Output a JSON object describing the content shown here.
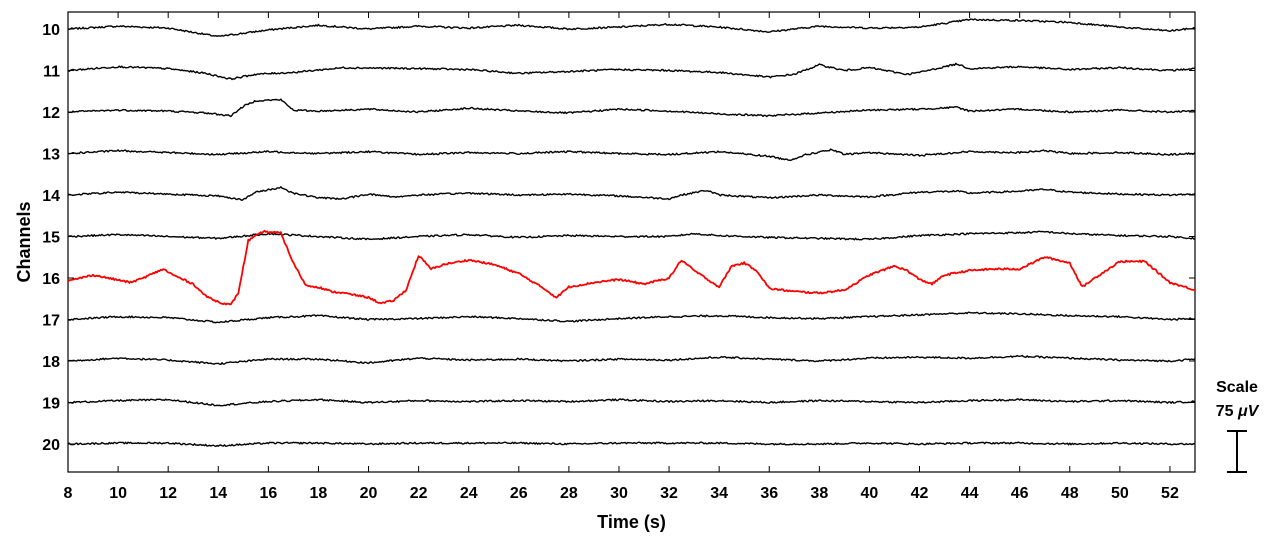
{
  "chart_data": {
    "type": "line",
    "title": "",
    "xlabel": "Time (s)",
    "ylabel": "Channels",
    "xlim": [
      8,
      53
    ],
    "xticks": [
      8,
      10,
      12,
      14,
      16,
      18,
      20,
      22,
      24,
      26,
      28,
      30,
      32,
      34,
      36,
      38,
      40,
      42,
      44,
      46,
      48,
      50,
      52
    ],
    "channels": [
      10,
      11,
      12,
      13,
      14,
      15,
      16,
      17,
      18,
      19,
      20
    ],
    "grid": false,
    "legend": "none",
    "colors": {
      "normal": "#000000",
      "highlight": "#ff0000"
    },
    "highlight_channel": 16,
    "scale_bar": {
      "label": "Scale",
      "value": "75",
      "unit": "μV",
      "value_uv": 75
    },
    "series": [
      {
        "channel": 10,
        "color": "#000000",
        "x": [
          8,
          10,
          12,
          14,
          16,
          18,
          20,
          22,
          24,
          26,
          28,
          30,
          32,
          34,
          36,
          38,
          40,
          42,
          44,
          46,
          48,
          50,
          52,
          53
        ],
        "y": [
          0,
          0.3,
          0.1,
          -0.8,
          -0.1,
          0.4,
          0.0,
          0.3,
          0.1,
          0.4,
          0.0,
          0.2,
          0.5,
          0.2,
          -0.3,
          0.3,
          0.1,
          0.2,
          1.0,
          0.9,
          0.7,
          0.2,
          -0.2,
          0.1
        ]
      },
      {
        "channel": 11,
        "color": "#000000",
        "x": [
          8,
          10,
          12,
          13.5,
          14.5,
          15.5,
          17,
          19,
          22,
          24,
          26,
          28,
          30,
          32,
          34,
          36,
          37,
          38,
          39,
          40,
          41.5,
          42,
          43.5,
          44,
          46,
          48,
          50,
          52,
          53
        ],
        "y": [
          0,
          0.4,
          0.2,
          -0.3,
          -0.9,
          -0.4,
          -0.2,
          0.3,
          0.2,
          0.1,
          -0.3,
          -0.1,
          0.1,
          0.0,
          -0.2,
          -0.7,
          -0.4,
          0.6,
          0.0,
          0.3,
          -0.4,
          -0.2,
          0.7,
          0.2,
          0.4,
          0.1,
          0.3,
          0.0,
          0.2
        ]
      },
      {
        "channel": 12,
        "color": "#000000",
        "x": [
          8,
          10,
          12,
          13.5,
          14.5,
          15,
          15.5,
          16.5,
          17,
          18,
          20,
          22,
          24,
          26,
          28,
          30,
          32,
          34,
          36,
          38,
          40,
          42,
          43.5,
          44,
          46,
          48,
          50,
          52,
          53
        ],
        "y": [
          0,
          0.2,
          0.1,
          -0.1,
          -0.4,
          0.6,
          1.2,
          1.3,
          0.2,
          0.1,
          0.3,
          0.0,
          0.4,
          0.1,
          -0.1,
          0.3,
          0.1,
          -0.2,
          -0.4,
          -0.1,
          0.2,
          0.3,
          0.5,
          0.1,
          0.3,
          0.0,
          0.2,
          0.0,
          0.1
        ]
      },
      {
        "channel": 13,
        "color": "#000000",
        "x": [
          8,
          10,
          12,
          14,
          16,
          18,
          20,
          22,
          24,
          26,
          28,
          30,
          32,
          34,
          36,
          36.8,
          37.5,
          38.5,
          39,
          40,
          42,
          44,
          46,
          47,
          48,
          50,
          52,
          53
        ],
        "y": [
          0,
          0.3,
          0.1,
          -0.1,
          0.2,
          0.0,
          0.2,
          -0.1,
          0.1,
          0.0,
          0.2,
          0.0,
          -0.1,
          0.2,
          -0.3,
          -0.7,
          -0.1,
          0.4,
          -0.1,
          0.1,
          -0.2,
          0.2,
          0.1,
          0.3,
          0.0,
          0.1,
          -0.1,
          0.0
        ]
      },
      {
        "channel": 14,
        "color": "#000000",
        "x": [
          8,
          10,
          12,
          14,
          15,
          15.5,
          16.5,
          17,
          18,
          19,
          20,
          21,
          22,
          24,
          26,
          28,
          30,
          32,
          32.5,
          33.5,
          34,
          36,
          38,
          40,
          42,
          43.5,
          44,
          46,
          47,
          48,
          50,
          52,
          53
        ],
        "y": [
          0,
          0.3,
          0.1,
          -0.1,
          -0.5,
          0.3,
          0.8,
          0.2,
          -0.3,
          -0.4,
          0.1,
          -0.2,
          0.0,
          0.2,
          0.0,
          0.1,
          -0.1,
          -0.4,
          0.0,
          0.5,
          0.0,
          -0.3,
          0.0,
          -0.2,
          0.3,
          0.4,
          0.2,
          0.4,
          0.6,
          0.3,
          0.1,
          0.0,
          0.1
        ]
      },
      {
        "channel": 15,
        "color": "#000000",
        "x": [
          8,
          10,
          12,
          14,
          16,
          18,
          20,
          22,
          24,
          26,
          28,
          30,
          32,
          33,
          34,
          36,
          38,
          40,
          42,
          44,
          46,
          47,
          48,
          50,
          52,
          53
        ],
        "y": [
          0,
          0.2,
          0.0,
          -0.2,
          0.3,
          0.0,
          -0.3,
          0.0,
          0.2,
          -0.1,
          0.1,
          0.0,
          0.0,
          0.3,
          0.1,
          -0.1,
          -0.2,
          -0.3,
          0.1,
          0.3,
          0.4,
          0.5,
          0.3,
          0.1,
          0.0,
          -0.2
        ]
      },
      {
        "channel": 16,
        "color": "#ff0000",
        "x": [
          8,
          9,
          10.5,
          11,
          11.8,
          12.2,
          13,
          13.5,
          14,
          14.5,
          14.8,
          15.2,
          15.8,
          16.5,
          17,
          17.5,
          18,
          18.5,
          19,
          20,
          20.5,
          21,
          21.5,
          22,
          22.5,
          23,
          24,
          25,
          26,
          27,
          27.5,
          28,
          29,
          30,
          31,
          32,
          32.5,
          33,
          34,
          34.5,
          35,
          35.5,
          36,
          37,
          38,
          39,
          39.5,
          40,
          41,
          41.5,
          42,
          42.5,
          43,
          44,
          45,
          46,
          47,
          48,
          48.5,
          49,
          50,
          51,
          52,
          53
        ],
        "y": [
          -0.2,
          0.2,
          -0.3,
          0.0,
          0.6,
          0.2,
          -0.4,
          -1.2,
          -1.6,
          -1.8,
          -1.0,
          2.5,
          3.1,
          3.0,
          1.0,
          -0.5,
          -0.6,
          -0.9,
          -1.0,
          -1.3,
          -1.7,
          -1.5,
          -0.8,
          1.5,
          0.6,
          0.9,
          1.2,
          0.9,
          0.3,
          -0.7,
          -1.3,
          -0.6,
          -0.3,
          -0.1,
          -0.4,
          0.0,
          1.2,
          0.5,
          -0.6,
          0.8,
          1.0,
          0.5,
          -0.7,
          -0.9,
          -1.0,
          -0.8,
          -0.3,
          0.2,
          0.8,
          0.5,
          -0.1,
          -0.4,
          0.2,
          0.5,
          0.6,
          0.6,
          1.4,
          1.0,
          -0.6,
          0.0,
          1.1,
          1.1,
          -0.3,
          -0.8
        ]
      },
      {
        "channel": 17,
        "color": "#000000",
        "x": [
          8,
          10,
          12,
          14,
          16,
          18,
          20,
          22,
          24,
          26,
          28,
          30,
          32,
          34,
          36,
          38,
          40,
          42,
          44,
          46,
          48,
          50,
          52,
          53
        ],
        "y": [
          0,
          0.3,
          0.2,
          -0.3,
          0.2,
          0.4,
          0.0,
          0.1,
          0.3,
          0.1,
          -0.2,
          0.1,
          0.3,
          0.4,
          0.2,
          0.1,
          0.3,
          0.5,
          0.7,
          0.6,
          0.4,
          0.3,
          0.0,
          0.1
        ]
      },
      {
        "channel": 18,
        "color": "#000000",
        "x": [
          8,
          10,
          12,
          14,
          16,
          18,
          20,
          22,
          24,
          26,
          28,
          30,
          32,
          34,
          36,
          38,
          40,
          42,
          44,
          46,
          48,
          50,
          52,
          53
        ],
        "y": [
          0,
          0.3,
          0.1,
          -0.3,
          0.2,
          0.2,
          -0.2,
          0.3,
          0.1,
          0.2,
          0.0,
          0.2,
          0.1,
          0.4,
          0.2,
          0.0,
          0.3,
          0.4,
          0.3,
          0.5,
          0.3,
          0.1,
          0.0,
          0.2
        ]
      },
      {
        "channel": 19,
        "color": "#000000",
        "x": [
          8,
          10,
          12,
          14,
          16,
          18,
          20,
          22,
          24,
          26,
          28,
          30,
          32,
          34,
          36,
          38,
          40,
          42,
          44,
          46,
          48,
          50,
          52,
          53
        ],
        "y": [
          0,
          0.2,
          0.3,
          -0.3,
          0.1,
          0.3,
          0.0,
          0.2,
          0.1,
          0.2,
          0.1,
          0.3,
          0.1,
          0.2,
          0.0,
          0.2,
          0.1,
          0.0,
          0.2,
          0.3,
          0.1,
          0.2,
          0.0,
          0.1
        ]
      },
      {
        "channel": 20,
        "color": "#000000",
        "x": [
          8,
          10,
          12,
          14,
          16,
          18,
          20,
          22,
          24,
          26,
          28,
          30,
          32,
          34,
          36,
          38,
          40,
          42,
          44,
          46,
          48,
          50,
          52,
          53
        ],
        "y": [
          0,
          0.1,
          0.1,
          -0.2,
          0.1,
          0.1,
          0.0,
          0.1,
          0.1,
          0.1,
          0.0,
          0.1,
          0.1,
          0.1,
          0.0,
          0.0,
          0.1,
          0.0,
          0.1,
          0.1,
          0.0,
          0.1,
          0.0,
          0.0
        ]
      }
    ]
  }
}
